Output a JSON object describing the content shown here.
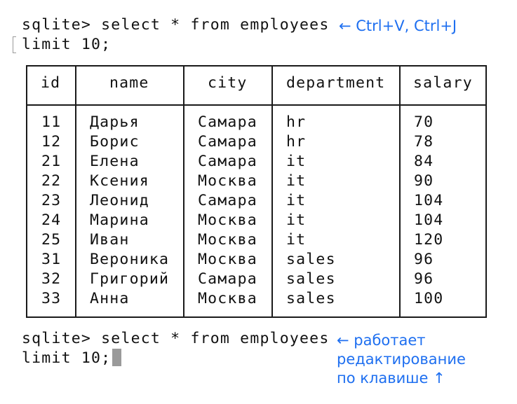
{
  "terminal": {
    "query1_line1": "sqlite> select * from employees",
    "query1_line2": "limit 10;",
    "query2_line1": "sqlite> select * from employees",
    "query2_line2": "limit 10;"
  },
  "annotations": {
    "note1": "← Ctrl+V, Ctrl+J",
    "note2_line1": "← работает",
    "note2_line2": "редактирование",
    "note2_line3": "по клавише ↑"
  },
  "table": {
    "headers": [
      "id",
      "name",
      "city",
      "department",
      "salary"
    ],
    "rows": [
      [
        "11",
        "Дарья",
        "Самара",
        "hr",
        "70"
      ],
      [
        "12",
        "Борис",
        "Самара",
        "hr",
        "78"
      ],
      [
        "21",
        "Елена",
        "Самара",
        "it",
        "84"
      ],
      [
        "22",
        "Ксения",
        "Москва",
        "it",
        "90"
      ],
      [
        "23",
        "Леонид",
        "Самара",
        "it",
        "104"
      ],
      [
        "24",
        "Марина",
        "Москва",
        "it",
        "104"
      ],
      [
        "25",
        "Иван",
        "Москва",
        "it",
        "120"
      ],
      [
        "31",
        "Вероника",
        "Москва",
        "sales",
        "96"
      ],
      [
        "32",
        "Григорий",
        "Самара",
        "sales",
        "96"
      ],
      [
        "33",
        "Анна",
        "Москва",
        "sales",
        "100"
      ]
    ]
  }
}
